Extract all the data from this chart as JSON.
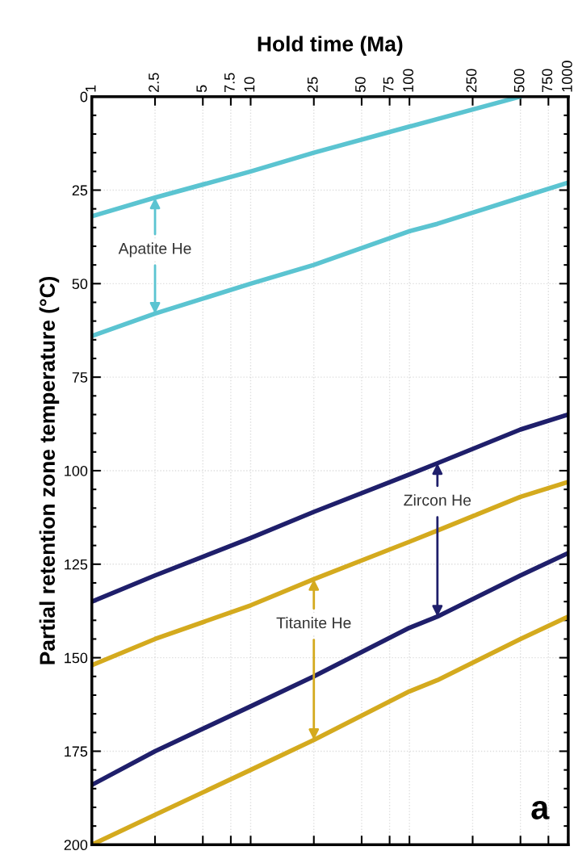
{
  "chart_data": {
    "type": "line",
    "xlabel": "Hold time (Ma)",
    "ylabel": "Partial retention zone temperature (°C)",
    "x": [
      1,
      2.5,
      10,
      25,
      100,
      150,
      500,
      1000
    ],
    "series": [
      {
        "color": "#5bc4d1",
        "x": [
          1,
          2.5,
          10,
          25,
          100,
          500
        ],
        "values": [
          32,
          27,
          20,
          15,
          8,
          0
        ]
      },
      {
        "color": "#5bc4d1",
        "values": [
          64,
          58,
          50,
          45,
          36,
          34,
          27,
          23
        ]
      },
      {
        "color": "#1f1f6b",
        "values": [
          135,
          128,
          118,
          111,
          101,
          98,
          89,
          85
        ]
      },
      {
        "color": "#1f1f6b",
        "values": [
          184,
          175,
          163,
          155,
          142,
          139,
          128,
          122
        ]
      },
      {
        "color": "#d4aa1e",
        "values": [
          152,
          145,
          136,
          129,
          119,
          116,
          107,
          103
        ]
      },
      {
        "color": "#d4aa1e",
        "values": [
          200,
          192,
          180,
          172,
          159,
          156,
          145,
          139
        ]
      }
    ],
    "xlim": [
      1,
      1000
    ],
    "xticks": [
      1,
      2.5,
      5,
      7.5,
      10,
      25,
      50,
      75,
      100,
      250,
      500,
      750,
      1000
    ],
    "ylim": [
      200,
      0
    ],
    "yticks": [
      0,
      25,
      50,
      75,
      100,
      125,
      150,
      175,
      200
    ],
    "log": "x",
    "grid": true,
    "line_style": "solid",
    "marker": "none",
    "annotations": [
      {
        "text": "Apatite He",
        "x": 2.5,
        "y": 27
      },
      {
        "text": "Zircon He",
        "x": 150,
        "y": 98
      },
      {
        "text": "Titanite He",
        "x": 25,
        "y": 129
      },
      "a"
    ]
  }
}
